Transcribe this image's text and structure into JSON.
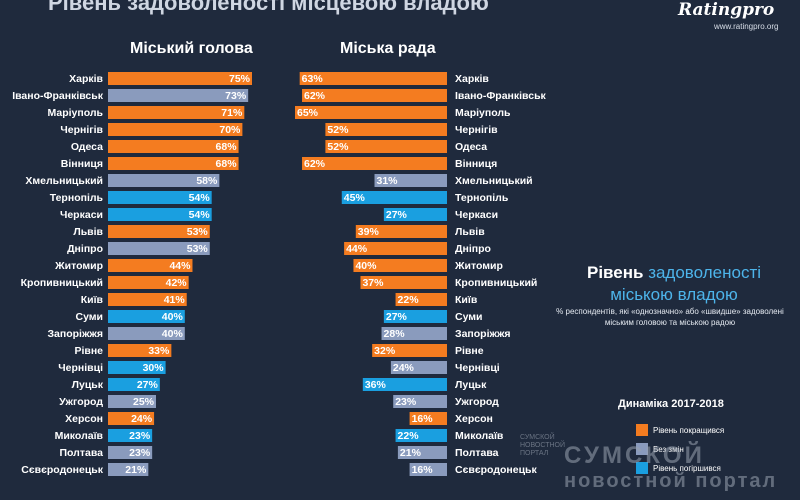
{
  "header": {
    "title": "Рівень задоволеності місцевою владою",
    "logo": "Ratingpro",
    "logo_url": "www.ratingpro.org"
  },
  "colors": {
    "improved": "#f47c20",
    "no_change": "#8a9bbd",
    "worsened": "#1a9fe0",
    "background": "#1f2a3d"
  },
  "chart_data": [
    {
      "type": "bar",
      "title": "Міський голова",
      "categories": [
        "Харків",
        "Івано-Франківськ",
        "Маріуполь",
        "Чернігів",
        "Одеса",
        "Вінниця",
        "Хмельницький",
        "Тернопіль",
        "Черкаси",
        "Львів",
        "Дніпро",
        "Житомир",
        "Кропивницький",
        "Київ",
        "Суми",
        "Запоріжжя",
        "Рівне",
        "Чернівці",
        "Луцьк",
        "Ужгород",
        "Херсон",
        "Миколаїв",
        "Полтава",
        "Сєвєродонецьк"
      ],
      "values": [
        75,
        73,
        71,
        70,
        68,
        68,
        58,
        54,
        54,
        53,
        53,
        44,
        42,
        41,
        40,
        40,
        33,
        30,
        27,
        25,
        24,
        23,
        23,
        21
      ],
      "value_labels": [
        "75%",
        "73%",
        "71%",
        "70%",
        "68%",
        "68%",
        "58%",
        "54%",
        "54%",
        "53%",
        "53%",
        "44%",
        "42%",
        "41%",
        "40%",
        "40%",
        "33%",
        "30%",
        "27%",
        "25%",
        "24%",
        "23%",
        "23%",
        "21%"
      ],
      "dynamics": [
        "improved",
        "no_change",
        "improved",
        "improved",
        "improved",
        "improved",
        "no_change",
        "worsened",
        "worsened",
        "improved",
        "no_change",
        "improved",
        "improved",
        "improved",
        "worsened",
        "no_change",
        "improved",
        "worsened",
        "worsened",
        "no_change",
        "improved",
        "worsened",
        "no_change",
        "no_change"
      ]
    },
    {
      "type": "bar",
      "title": "Міська рада",
      "categories": [
        "Харків",
        "Івано-Франківськ",
        "Маріуполь",
        "Чернігів",
        "Одеса",
        "Вінниця",
        "Хмельницький",
        "Тернопіль",
        "Черкаси",
        "Львів",
        "Дніпро",
        "Житомир",
        "Кропивницький",
        "Київ",
        "Суми",
        "Запоріжжя",
        "Рівне",
        "Чернівці",
        "Луцьк",
        "Ужгород",
        "Херсон",
        "Миколаїв",
        "Полтава",
        "Сєвєродонецьк"
      ],
      "values": [
        63,
        62,
        65,
        52,
        52,
        62,
        31,
        45,
        27,
        39,
        44,
        40,
        37,
        22,
        27,
        28,
        32,
        24,
        36,
        23,
        16,
        22,
        21,
        16
      ],
      "value_labels": [
        "63%",
        "62%",
        "65%",
        "52%",
        "52%",
        "62%",
        "31%",
        "45%",
        "27%",
        "39%",
        "44%",
        "40%",
        "37%",
        "22%",
        "27%",
        "28%",
        "32%",
        "24%",
        "36%",
        "23%",
        "16%",
        "22%",
        "21%",
        "16%"
      ],
      "dynamics": [
        "improved",
        "improved",
        "improved",
        "improved",
        "improved",
        "improved",
        "no_change",
        "worsened",
        "worsened",
        "improved",
        "improved",
        "improved",
        "improved",
        "improved",
        "worsened",
        "no_change",
        "improved",
        "no_change",
        "worsened",
        "no_change",
        "improved",
        "worsened",
        "no_change",
        "no_change"
      ]
    }
  ],
  "side": {
    "title_word1": "Рівень",
    "title_word2": "задоволеності",
    "title_line2": "міською владою",
    "subtitle": "% респондентів, які «однозначно» або «швидше» задоволені міським головою та міською радою"
  },
  "legend": {
    "title": "Динаміка 2017-2018",
    "items": [
      {
        "label": "Рівень покращився",
        "key": "improved"
      },
      {
        "label": "Без змін",
        "key": "no_change"
      },
      {
        "label": "Рівень погіршився",
        "key": "worsened"
      }
    ]
  },
  "watermark": {
    "small_line1": "СУМСКОЙ",
    "small_line2": "НОВОСТНОЙ",
    "small_line3": "ПОРТАЛ",
    "line1": "СУМСКОЙ",
    "line2": "новостной портал"
  }
}
